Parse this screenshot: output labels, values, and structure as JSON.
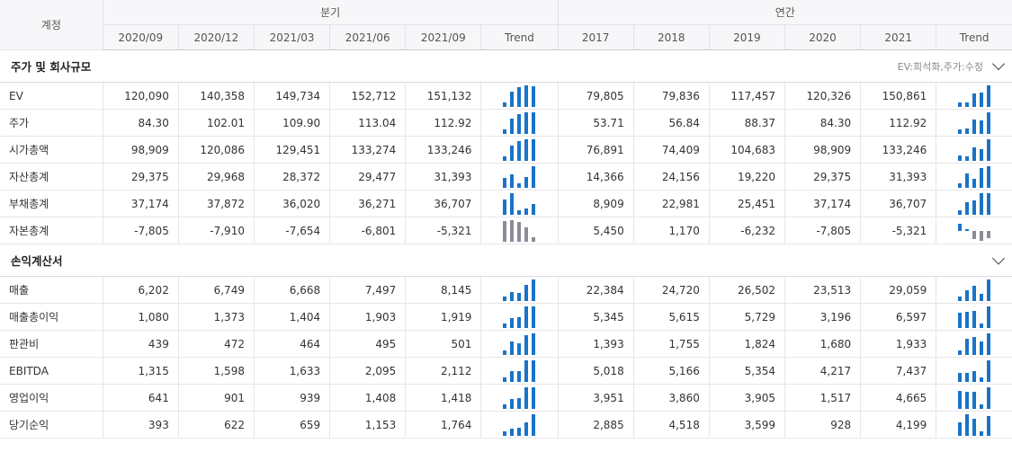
{
  "header": {
    "label": "계정",
    "quarterly_label": "분기",
    "annual_label": "연간",
    "quarters": [
      "2020/09",
      "2020/12",
      "2021/03",
      "2021/06",
      "2021/09"
    ],
    "years": [
      "2017",
      "2018",
      "2019",
      "2020",
      "2021"
    ],
    "trend_label": "Trend"
  },
  "colors": {
    "positive_bar": "#1a73c8",
    "negative_bar": "#8c8c99"
  },
  "sections": [
    {
      "title": "주가 및 회사규모",
      "note": "EV:희석화,주가:수정",
      "rows": [
        {
          "label": "EV",
          "quarterly": [
            "120,090",
            "140,358",
            "149,734",
            "152,712",
            "151,132"
          ],
          "annual": [
            "79,805",
            "79,836",
            "117,457",
            "120,326",
            "150,861"
          ],
          "q_values": [
            120090,
            140358,
            149734,
            152712,
            151132
          ],
          "a_values": [
            79805,
            79836,
            117457,
            120326,
            150861
          ]
        },
        {
          "label": "주가",
          "quarterly": [
            "84.30",
            "102.01",
            "109.90",
            "113.04",
            "112.92"
          ],
          "annual": [
            "53.71",
            "56.84",
            "88.37",
            "84.30",
            "112.92"
          ],
          "q_values": [
            84.3,
            102.01,
            109.9,
            113.04,
            112.92
          ],
          "a_values": [
            53.71,
            56.84,
            88.37,
            84.3,
            112.92
          ]
        },
        {
          "label": "시가총액",
          "quarterly": [
            "98,909",
            "120,086",
            "129,451",
            "133,274",
            "133,246"
          ],
          "annual": [
            "76,891",
            "74,409",
            "104,683",
            "98,909",
            "133,246"
          ],
          "q_values": [
            98909,
            120086,
            129451,
            133274,
            133246
          ],
          "a_values": [
            76891,
            74409,
            104683,
            98909,
            133246
          ]
        },
        {
          "label": "자산총계",
          "quarterly": [
            "29,375",
            "29,968",
            "28,372",
            "29,477",
            "31,393"
          ],
          "annual": [
            "14,366",
            "24,156",
            "19,220",
            "29,375",
            "31,393"
          ],
          "q_values": [
            29375,
            29968,
            28372,
            29477,
            31393
          ],
          "a_values": [
            14366,
            24156,
            19220,
            29375,
            31393
          ]
        },
        {
          "label": "부채총계",
          "quarterly": [
            "37,174",
            "37,872",
            "36,020",
            "36,271",
            "36,707"
          ],
          "annual": [
            "8,909",
            "22,981",
            "25,451",
            "37,174",
            "36,707"
          ],
          "q_values": [
            37174,
            37872,
            36020,
            36271,
            36707
          ],
          "a_values": [
            8909,
            22981,
            25451,
            37174,
            36707
          ]
        },
        {
          "label": "자본총계",
          "quarterly": [
            "-7,805",
            "-7,910",
            "-7,654",
            "-6,801",
            "-5,321"
          ],
          "annual": [
            "5,450",
            "1,170",
            "-6,232",
            "-7,805",
            "-5,321"
          ],
          "q_values": [
            -7805,
            -7910,
            -7654,
            -6801,
            -5321
          ],
          "a_values": [
            5450,
            1170,
            -6232,
            -7805,
            -5321
          ]
        }
      ]
    },
    {
      "title": "손익계산서",
      "note": "",
      "rows": [
        {
          "label": "매출",
          "quarterly": [
            "6,202",
            "6,749",
            "6,668",
            "7,497",
            "8,145"
          ],
          "annual": [
            "22,384",
            "24,720",
            "26,502",
            "23,513",
            "29,059"
          ],
          "q_values": [
            6202,
            6749,
            6668,
            7497,
            8145
          ],
          "a_values": [
            22384,
            24720,
            26502,
            23513,
            29059
          ]
        },
        {
          "label": "매출총이익",
          "quarterly": [
            "1,080",
            "1,373",
            "1,404",
            "1,903",
            "1,919"
          ],
          "annual": [
            "5,345",
            "5,615",
            "5,729",
            "3,196",
            "6,597"
          ],
          "q_values": [
            1080,
            1373,
            1404,
            1903,
            1919
          ],
          "a_values": [
            5345,
            5615,
            5729,
            3196,
            6597
          ]
        },
        {
          "label": "판관비",
          "quarterly": [
            "439",
            "472",
            "464",
            "495",
            "501"
          ],
          "annual": [
            "1,393",
            "1,755",
            "1,824",
            "1,680",
            "1,933"
          ],
          "q_values": [
            439,
            472,
            464,
            495,
            501
          ],
          "a_values": [
            1393,
            1755,
            1824,
            1680,
            1933
          ]
        },
        {
          "label": "EBITDA",
          "quarterly": [
            "1,315",
            "1,598",
            "1,633",
            "2,095",
            "2,112"
          ],
          "annual": [
            "5,018",
            "5,166",
            "5,354",
            "4,217",
            "7,437"
          ],
          "q_values": [
            1315,
            1598,
            1633,
            2095,
            2112
          ],
          "a_values": [
            5018,
            5166,
            5354,
            4217,
            7437
          ]
        },
        {
          "label": "영업이익",
          "quarterly": [
            "641",
            "901",
            "939",
            "1,408",
            "1,418"
          ],
          "annual": [
            "3,951",
            "3,860",
            "3,905",
            "1,517",
            "4,665"
          ],
          "q_values": [
            641,
            901,
            939,
            1408,
            1418
          ],
          "a_values": [
            3951,
            3860,
            3905,
            1517,
            4665
          ]
        },
        {
          "label": "당기순익",
          "quarterly": [
            "393",
            "622",
            "659",
            "1,153",
            "1,764"
          ],
          "annual": [
            "2,885",
            "4,518",
            "3,599",
            "928",
            "4,199"
          ],
          "q_values": [
            393,
            622,
            659,
            1153,
            1764
          ],
          "a_values": [
            2885,
            4518,
            3599,
            928,
            4199
          ]
        }
      ]
    }
  ]
}
